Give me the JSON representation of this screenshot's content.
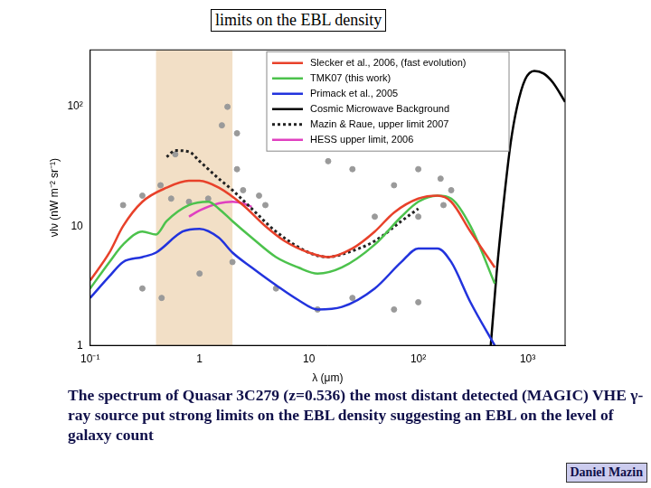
{
  "chart_data": {
    "type": "line",
    "title": "limits on the EBL density",
    "x_label": "λ (μm)",
    "y_label": "νIν (nW m⁻² sr⁻¹)",
    "caption": "The spectrum of Quasar 3C279 (z=0.536) the most distant detected (MAGIC) VHE γ-ray source put strong limits on the EBL density suggesting an EBL on the level of galaxy count",
    "credit": "Daniel Mazin",
    "log": true,
    "grid": false,
    "legend": "upper right",
    "xlim": [
      0.1,
      2200
    ],
    "ylim": [
      1,
      300
    ],
    "xticks": [
      {
        "value": 0.1,
        "label": "10⁻¹"
      },
      1,
      10,
      {
        "value": 100,
        "label": "10²"
      },
      {
        "value": 1000,
        "label": "10³"
      }
    ],
    "yticks": [
      1,
      10,
      {
        "value": 100,
        "label": "10²"
      }
    ],
    "bands": [
      {
        "range": [
          0.4,
          2
        ],
        "color": "#f2dfc6"
      }
    ],
    "series": [
      {
        "type": "scatter",
        "marker": "circle",
        "color": "#9a9a9a",
        "x": [
          0.2,
          0.3,
          0.44,
          0.55,
          0.8,
          1.2,
          2.2,
          2.5,
          3.5,
          4,
          0.6,
          1.6,
          2.2,
          1.8,
          15,
          25,
          60,
          100,
          100,
          160,
          200,
          170,
          2,
          5,
          12,
          25,
          60,
          100,
          1,
          0.3,
          0.45,
          40
        ],
        "values": [
          15,
          18,
          22,
          17,
          16,
          17,
          30,
          20,
          18,
          15,
          40,
          70,
          60,
          100,
          35,
          30,
          22,
          12,
          30,
          25,
          20,
          15,
          5,
          3,
          2,
          2.5,
          2,
          2.3,
          4,
          3,
          2.5,
          12
        ]
      },
      {
        "name": "Slecker et al., 2006, (fast evolution)",
        "color": "#e8412a",
        "line_style": "solid",
        "x": [
          0.1,
          0.15,
          0.2,
          0.3,
          0.5,
          0.8,
          1,
          1.5,
          2.5,
          4,
          6,
          10,
          15,
          25,
          40,
          60,
          100,
          150,
          200,
          300,
          500
        ],
        "values": [
          3.5,
          6,
          10,
          16,
          21,
          24,
          24,
          21,
          15,
          10,
          7.5,
          6,
          5.5,
          6.5,
          9,
          13,
          17,
          18,
          16,
          9,
          4.5
        ]
      },
      {
        "name": "TMK07 (this work)",
        "color": "#4cc24c",
        "line_style": "solid",
        "x": [
          0.1,
          0.15,
          0.2,
          0.3,
          0.4,
          0.5,
          0.8,
          1.2,
          1.5,
          2,
          3,
          5,
          8,
          12,
          20,
          40,
          70,
          100,
          150,
          200,
          300,
          500
        ],
        "values": [
          3,
          5,
          7,
          9,
          8.5,
          11,
          15,
          16,
          14,
          11,
          8,
          5.5,
          4.5,
          4,
          4.5,
          7,
          12,
          16,
          18,
          17,
          10,
          3.3
        ]
      },
      {
        "name": "Primack et al., 2005",
        "color": "#2233dd",
        "line_style": "solid",
        "x": [
          0.1,
          0.15,
          0.2,
          0.3,
          0.4,
          0.7,
          1,
          1.5,
          2,
          3,
          5,
          8,
          12,
          20,
          40,
          70,
          100,
          150,
          200,
          300,
          500
        ],
        "values": [
          2.5,
          3.8,
          5,
          5.5,
          6,
          9,
          9.5,
          8,
          6,
          4.5,
          3.2,
          2.4,
          2,
          2.1,
          3,
          5,
          6.5,
          6.5,
          5,
          2.3,
          1
        ]
      },
      {
        "name": "Cosmic Microwave Background",
        "color": "#000000",
        "line_style": "solid",
        "x": [
          460,
          520,
          600,
          700,
          800,
          950,
          1150,
          1400,
          1700,
          2200
        ],
        "values": [
          1,
          4,
          15,
          50,
          100,
          170,
          200,
          190,
          160,
          110
        ]
      },
      {
        "name": "Mazin & Raue, upper limit 2007",
        "color": "#222222",
        "line_style": "dotted",
        "x": [
          0.5,
          0.6,
          0.8,
          1,
          1.5,
          2,
          3,
          5,
          10,
          15,
          20,
          40,
          70,
          100
        ],
        "values": [
          38,
          43,
          42,
          35,
          25,
          20,
          14,
          9,
          6,
          5.5,
          5.8,
          7.5,
          11,
          14
        ]
      },
      {
        "name": "HESS upper limit, 2006",
        "color": "#e040c0",
        "line_style": "solid",
        "x": [
          0.8,
          1,
          1.5,
          2,
          2.5,
          3
        ],
        "values": [
          12,
          13.5,
          15.5,
          16,
          15.5,
          14.5
        ]
      }
    ]
  }
}
